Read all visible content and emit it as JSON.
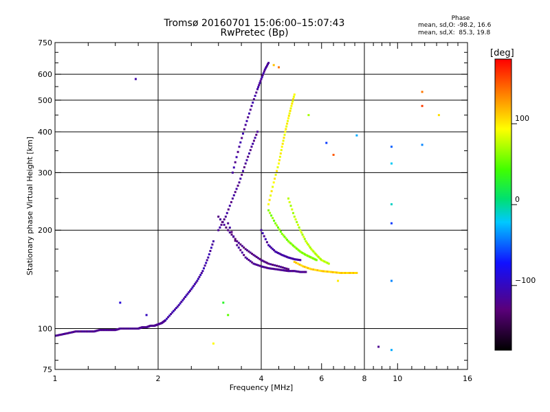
{
  "header": {
    "title_line1": "Tromsø 20160701 15:06:00–15:07:43",
    "title_line2": "RwPretec (Bp)",
    "phase_title": "Phase",
    "stat_o": "mean, sd,O: -98.2, 16.6",
    "stat_x": "mean, sd,X:  85.3, 19.8"
  },
  "colorbar": {
    "unit_label": "[deg]",
    "ticks": [
      {
        "value": 100,
        "label": "100"
      },
      {
        "value": 0,
        "label": "0"
      },
      {
        "value": -100,
        "label": "−100"
      }
    ],
    "range": [
      -180,
      180
    ]
  },
  "chart_data": {
    "type": "scatter",
    "title": "Tromsø 20160701 15:06:00–15:07:43",
    "subtitle": "RwPretec (Bp)",
    "xlabel": "Frequency [MHz]",
    "ylabel": "Stationary phase Virtual Height [km]",
    "x_scale": "log",
    "y_scale": "log",
    "xlim": [
      1,
      16
    ],
    "ylim": [
      75,
      750
    ],
    "x_ticks": [
      {
        "value": 1,
        "label": "1"
      },
      {
        "value": 2,
        "label": "2"
      },
      {
        "value": 4,
        "label": "4"
      },
      {
        "value": 6,
        "label": "6"
      },
      {
        "value": 8,
        "label": "8"
      },
      {
        "value": 10,
        "label": "10"
      },
      {
        "value": 16,
        "label": "16"
      }
    ],
    "x_gridlines": [
      2,
      4,
      8
    ],
    "x_minor_ticks": [
      1.25,
      1.5,
      1.75,
      2.5,
      3,
      3.5,
      4.5,
      5,
      5.5,
      6.5,
      7,
      7.5,
      8.5,
      9,
      9.5,
      11,
      12,
      13,
      14,
      15
    ],
    "y_ticks": [
      {
        "value": 75,
        "label": "75"
      },
      {
        "value": 100,
        "label": "100"
      },
      {
        "value": 200,
        "label": "200"
      },
      {
        "value": 300,
        "label": "300"
      },
      {
        "value": 400,
        "label": "400"
      },
      {
        "value": 500,
        "label": "500"
      },
      {
        "value": 600,
        "label": "600"
      },
      {
        "value": 750,
        "label": "750"
      }
    ],
    "y_gridlines": [
      100,
      200,
      300,
      400,
      500,
      600
    ],
    "y_minor_ticks": [
      80,
      90,
      125,
      150,
      175,
      250,
      350,
      450,
      550,
      650,
      700
    ],
    "colorscale": "rainbow, phase in degrees from -180 (black) to 180 (red)",
    "traces": [
      {
        "name": "",
        "phase": -120,
        "x": [
          1.0,
          1.05,
          1.1,
          1.15,
          1.2,
          1.25,
          1.3,
          1.35,
          1.4,
          1.45,
          1.5,
          1.55,
          1.6,
          1.65,
          1.7,
          1.75,
          1.8,
          1.85,
          1.9,
          1.95,
          2.0,
          2.05,
          2.1
        ],
        "y": [
          95,
          96,
          97,
          98,
          98,
          98,
          98,
          99,
          99,
          99,
          99,
          100,
          100,
          100,
          100,
          100,
          101,
          101,
          102,
          102,
          103,
          104,
          106
        ]
      },
      {
        "name": "",
        "phase": -110,
        "x": [
          2.1,
          2.2,
          2.3,
          2.4,
          2.5,
          2.6,
          2.7,
          2.8,
          2.9
        ],
        "y": [
          106,
          112,
          118,
          125,
          132,
          140,
          150,
          165,
          185
        ]
      },
      {
        "name": "",
        "phase": -120,
        "x": [
          3.2,
          3.4,
          3.6,
          3.8,
          4.0,
          4.2,
          4.4,
          4.6,
          4.8,
          5.0,
          5.2,
          5.4
        ],
        "y": [
          210,
          180,
          165,
          158,
          155,
          153,
          152,
          151,
          150,
          150,
          149,
          149
        ]
      },
      {
        "name": "",
        "phase": -115,
        "x": [
          3.3,
          3.45,
          3.6,
          3.75,
          3.9,
          4.0,
          4.1,
          4.2
        ],
        "y": [
          300,
          360,
          420,
          480,
          540,
          580,
          620,
          650
        ]
      },
      {
        "name": "",
        "phase": -118,
        "x": [
          3.0,
          3.15,
          3.3,
          3.45,
          3.6,
          3.75,
          3.9
        ],
        "y": [
          200,
          220,
          250,
          280,
          320,
          360,
          400
        ]
      },
      {
        "name": "",
        "phase": -125,
        "x": [
          3.0,
          3.2,
          3.4,
          3.6,
          3.8,
          4.0,
          4.2,
          4.5,
          4.8
        ],
        "y": [
          220,
          200,
          185,
          175,
          168,
          162,
          158,
          155,
          152
        ]
      },
      {
        "name": "",
        "phase": -112,
        "x": [
          4.0,
          4.2,
          4.4,
          4.6,
          4.8,
          5.0,
          5.2
        ],
        "y": [
          200,
          180,
          172,
          168,
          165,
          163,
          162
        ]
      },
      {
        "name": "",
        "phase": 60,
        "x": [
          4.2,
          4.4,
          4.6,
          4.8,
          5.0,
          5.2,
          5.4,
          5.6,
          5.8
        ],
        "y": [
          230,
          210,
          195,
          185,
          178,
          172,
          168,
          165,
          162
        ]
      },
      {
        "name": "",
        "phase": 95,
        "x": [
          4.2,
          4.35,
          4.5,
          4.6,
          4.7,
          4.8,
          4.9,
          5.0
        ],
        "y": [
          240,
          280,
          320,
          360,
          400,
          440,
          480,
          520
        ]
      },
      {
        "name": "",
        "phase": 75,
        "x": [
          4.8,
          5.0,
          5.2,
          5.4,
          5.6,
          5.8,
          6.0,
          6.3
        ],
        "y": [
          250,
          220,
          200,
          185,
          175,
          168,
          162,
          158
        ]
      },
      {
        "name": "",
        "phase": 110,
        "x": [
          5.0,
          5.3,
          5.6,
          6.0,
          6.4,
          6.8,
          7.2,
          7.6
        ],
        "y": [
          160,
          155,
          152,
          150,
          149,
          148,
          148,
          148
        ]
      }
    ],
    "scatter_points": [
      {
        "x": 1.72,
        "y": 580,
        "phase": -110
      },
      {
        "x": 4.35,
        "y": 640,
        "phase": 115
      },
      {
        "x": 4.5,
        "y": 630,
        "phase": 140
      },
      {
        "x": 5.5,
        "y": 450,
        "phase": 70
      },
      {
        "x": 6.2,
        "y": 370,
        "phase": -60
      },
      {
        "x": 6.5,
        "y": 340,
        "phase": 150
      },
      {
        "x": 7.6,
        "y": 390,
        "phase": -30
      },
      {
        "x": 9.6,
        "y": 360,
        "phase": -50
      },
      {
        "x": 9.6,
        "y": 320,
        "phase": -20
      },
      {
        "x": 9.6,
        "y": 240,
        "phase": -10
      },
      {
        "x": 9.6,
        "y": 210,
        "phase": -60
      },
      {
        "x": 9.6,
        "y": 140,
        "phase": -40
      },
      {
        "x": 9.6,
        "y": 86,
        "phase": -30
      },
      {
        "x": 8.8,
        "y": 88,
        "phase": -120
      },
      {
        "x": 11.8,
        "y": 530,
        "phase": 140
      },
      {
        "x": 11.8,
        "y": 480,
        "phase": 160
      },
      {
        "x": 11.8,
        "y": 365,
        "phase": -40
      },
      {
        "x": 13.2,
        "y": 450,
        "phase": 105
      },
      {
        "x": 6.7,
        "y": 140,
        "phase": 100
      },
      {
        "x": 2.9,
        "y": 90,
        "phase": 95
      },
      {
        "x": 3.1,
        "y": 120,
        "phase": 30
      },
      {
        "x": 3.2,
        "y": 110,
        "phase": 50
      },
      {
        "x": 1.55,
        "y": 120,
        "phase": -90
      },
      {
        "x": 1.85,
        "y": 110,
        "phase": -100
      }
    ]
  }
}
